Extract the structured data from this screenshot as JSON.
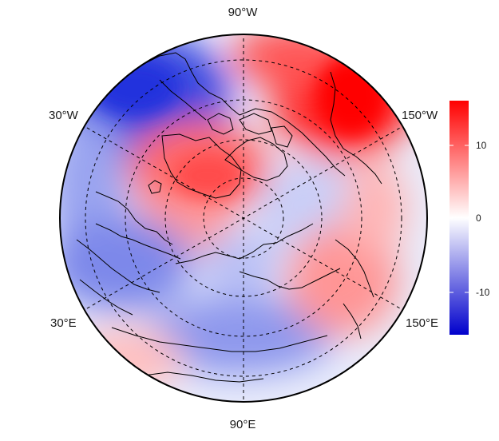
{
  "map": {
    "projection": "north polar stereographic",
    "longitude_labels": {
      "top": "90°W",
      "bottom": "90°E",
      "upper_left": "30°W",
      "upper_right": "150°W",
      "lower_left": "30°E",
      "lower_right": "150°E"
    },
    "colorbar": {
      "ticks": [
        {
          "value": 10,
          "label": "10"
        },
        {
          "value": 0,
          "label": "0"
        },
        {
          "value": -10,
          "label": "-10"
        }
      ],
      "range": [
        -15.5,
        15.5
      ],
      "colors": {
        "high": "#ff0000",
        "mid": "#ffffff",
        "low": "#0000cc"
      }
    },
    "graticule": {
      "style": "dashed",
      "color": "#000000"
    }
  }
}
